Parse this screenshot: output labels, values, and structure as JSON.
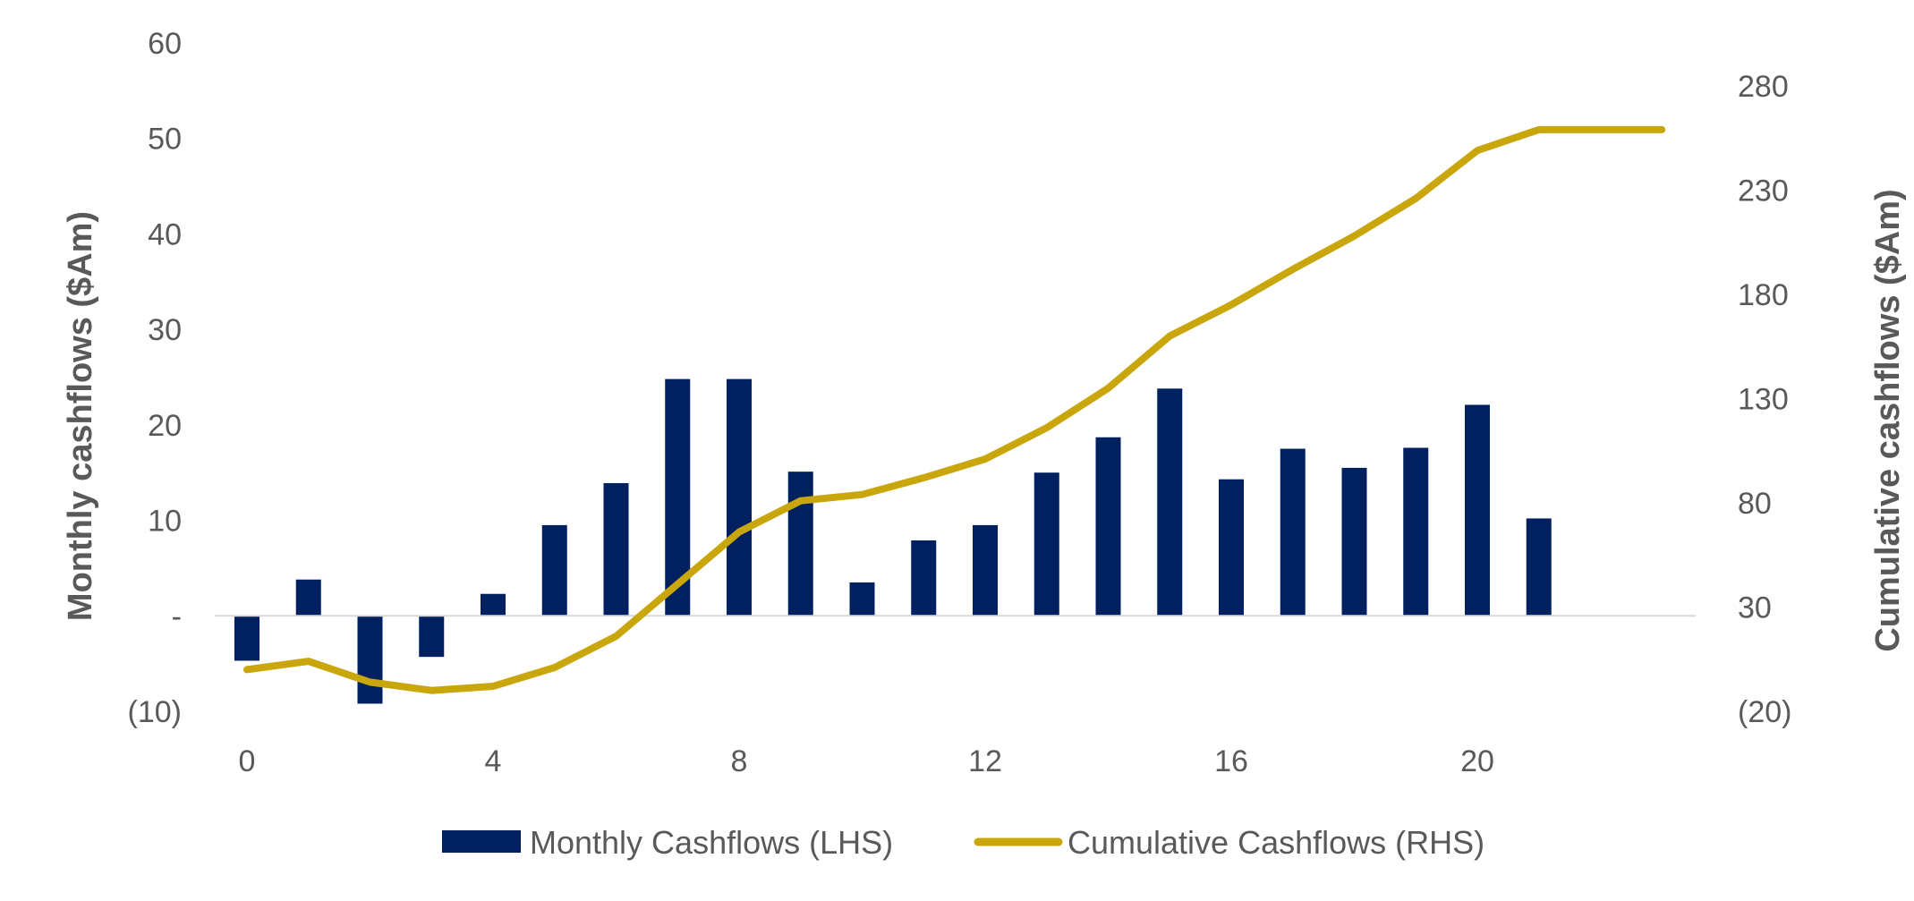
{
  "chart_data": {
    "type": "bar+line",
    "x": [
      0,
      1,
      2,
      3,
      4,
      5,
      6,
      7,
      8,
      9,
      10,
      11,
      12,
      13,
      14,
      15,
      16,
      17,
      18,
      19,
      20,
      21,
      22,
      23
    ],
    "x_tick_labels": [
      "0",
      "4",
      "8",
      "12",
      "16",
      "20"
    ],
    "x_tick_values": [
      0,
      4,
      8,
      12,
      16,
      20
    ],
    "series": [
      {
        "name": "Monthly Cashflows (LHS)",
        "type": "bar",
        "axis": "left",
        "color": "#002060",
        "x": [
          0,
          1,
          2,
          3,
          4,
          5,
          6,
          7,
          8,
          9,
          10,
          11,
          12,
          13,
          14,
          15,
          16,
          17,
          18,
          19,
          20,
          21
        ],
        "values": [
          -4.7,
          3.8,
          -9.2,
          -4.3,
          2.3,
          9.5,
          13.9,
          24.8,
          24.8,
          15.1,
          3.5,
          7.9,
          9.5,
          15.0,
          18.7,
          23.8,
          14.3,
          17.5,
          15.5,
          17.6,
          22.1,
          10.2
        ]
      },
      {
        "name": "Cumulative Cashflows (RHS)",
        "type": "line",
        "axis": "right",
        "color": "#C9A60C",
        "x": [
          0,
          1,
          2,
          3,
          4,
          5,
          6,
          7,
          8,
          9,
          10,
          11,
          12,
          13,
          14,
          15,
          16,
          17,
          18,
          19,
          20,
          21,
          22,
          23
        ],
        "values": [
          0,
          4,
          -6,
          -10,
          -8,
          1,
          16,
          41,
          66,
          81,
          84,
          92,
          101,
          116,
          135,
          160,
          175,
          192,
          208,
          226,
          249,
          259,
          259,
          259
        ]
      }
    ],
    "left_axis": {
      "title": "Monthly cashflows ($Am)",
      "ylim": [
        -10,
        60
      ],
      "ticks": [
        -10,
        0,
        10,
        20,
        30,
        40,
        50,
        60
      ],
      "tick_labels": [
        "(10)",
        "-",
        "10",
        "20",
        "30",
        "40",
        "50",
        "60"
      ]
    },
    "right_axis": {
      "title": "Cumulative cashflows ($Am)",
      "ylim": [
        -20,
        280
      ],
      "ticks": [
        -20,
        30,
        80,
        130,
        180,
        230,
        280
      ],
      "tick_labels": [
        "(20)",
        "30",
        "80",
        "130",
        "180",
        "230",
        "280"
      ]
    },
    "xlim": [
      -0.5,
      23.5
    ],
    "grid": false,
    "legend": "bottom-center"
  }
}
